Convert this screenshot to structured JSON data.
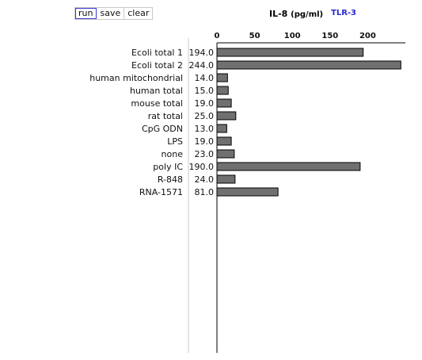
{
  "toolbar": {
    "run_label": "run",
    "save_label": "save",
    "clear_label": "clear"
  },
  "chart_title": "IL-8",
  "chart_unit": "(pg/ml)",
  "chart_subtitle": "TLR-3",
  "colors": {
    "bar": "#707070",
    "subtitle": "#2a2ad0"
  },
  "chart_data": {
    "type": "bar",
    "orientation": "horizontal",
    "title": "IL-8 (pg/ml)",
    "subtitle": "TLR-3",
    "categories": [
      "Ecoli total 1",
      "Ecoli total 2",
      "human mitochondrial",
      "human total",
      "mouse total",
      "rat total",
      "CpG ODN",
      "LPS",
      "none",
      "poly IC",
      "R-848",
      "RNA-1571"
    ],
    "value_labels": [
      "194.0",
      "244.0",
      "14.0",
      "15.0",
      "19.0",
      "25.0",
      "13.0",
      "19.0",
      "23.0",
      "190.0",
      "24.0",
      "81.0"
    ],
    "values": [
      194,
      244,
      14,
      15,
      19,
      25,
      13,
      19,
      23,
      190,
      24,
      81
    ],
    "xticks": [
      0,
      50,
      100,
      150,
      200
    ],
    "xlim": [
      0,
      250
    ],
    "axis_position": "top",
    "grid": false
  }
}
